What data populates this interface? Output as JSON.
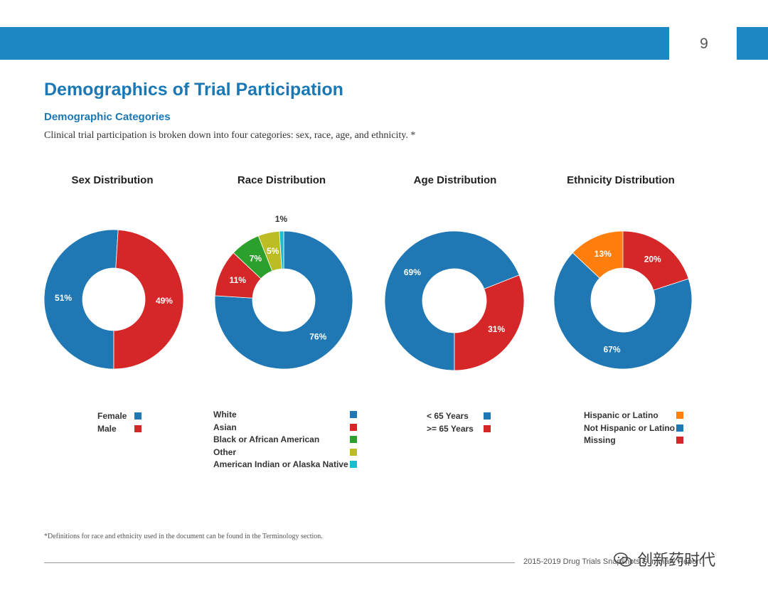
{
  "page": {
    "number": "9",
    "title": "Demographics of Trial Participation",
    "subtitle": "Demographic Categories",
    "intro": "Clinical trial participation is broken down into four categories: sex, race, age, and ethnicity. *",
    "footnote": "*Definitions for race and ethnicity used in the document can be found in the Terminology section.",
    "footer_text": "2015-2019 Drug Trials Snapshots Summary Report",
    "watermark": "创新药时代",
    "watermark_icon": "wechat-icon"
  },
  "chart_data": [
    {
      "type": "pie",
      "title": "Sex Distribution",
      "categories": [
        "Female",
        "Male"
      ],
      "values": [
        51,
        49
      ],
      "labels": [
        "51%",
        "49%"
      ],
      "colors": [
        "#1f77b4",
        "#d62728"
      ],
      "legend": [
        {
          "label": "Female",
          "color": "#1f77b4"
        },
        {
          "label": "Male",
          "color": "#d62728"
        }
      ]
    },
    {
      "type": "pie",
      "title": "Race Distribution",
      "categories": [
        "White",
        "Asian",
        "Black or African American",
        "Other",
        "American Indian or Alaska Native"
      ],
      "values": [
        76,
        11,
        7,
        5,
        1
      ],
      "labels": [
        "76%",
        "11%",
        "7%",
        "5%",
        "1%"
      ],
      "colors": [
        "#1f77b4",
        "#d62728",
        "#2ca02c",
        "#bcbd22",
        "#17becf"
      ],
      "legend": [
        {
          "label": "White",
          "color": "#1f77b4"
        },
        {
          "label": "Asian",
          "color": "#d62728"
        },
        {
          "label": "Black or African American",
          "color": "#2ca02c"
        },
        {
          "label": "Other",
          "color": "#bcbd22"
        },
        {
          "label": "American Indian or Alaska Native",
          "color": "#17becf"
        }
      ]
    },
    {
      "type": "pie",
      "title": "Age Distribution",
      "categories": [
        "< 65 Years",
        ">= 65 Years"
      ],
      "values": [
        69,
        31
      ],
      "labels": [
        "69%",
        "31%"
      ],
      "colors": [
        "#1f77b4",
        "#d62728"
      ],
      "legend": [
        {
          "label": "< 65 Years",
          "color": "#1f77b4"
        },
        {
          "label": ">= 65 Years",
          "color": "#d62728"
        }
      ]
    },
    {
      "type": "pie",
      "title": "Ethnicity Distribution",
      "categories": [
        "Hispanic or Latino",
        "Not Hispanic or Latino",
        "Missing"
      ],
      "values": [
        13,
        67,
        20
      ],
      "labels": [
        "13%",
        "67%",
        "20%"
      ],
      "colors": [
        "#ff7f0e",
        "#1f77b4",
        "#d62728"
      ],
      "legend": [
        {
          "label": "Hispanic or Latino",
          "color": "#ff7f0e"
        },
        {
          "label": "Not Hispanic or Latino",
          "color": "#1f77b4"
        },
        {
          "label": "Missing",
          "color": "#d62728"
        }
      ]
    }
  ]
}
